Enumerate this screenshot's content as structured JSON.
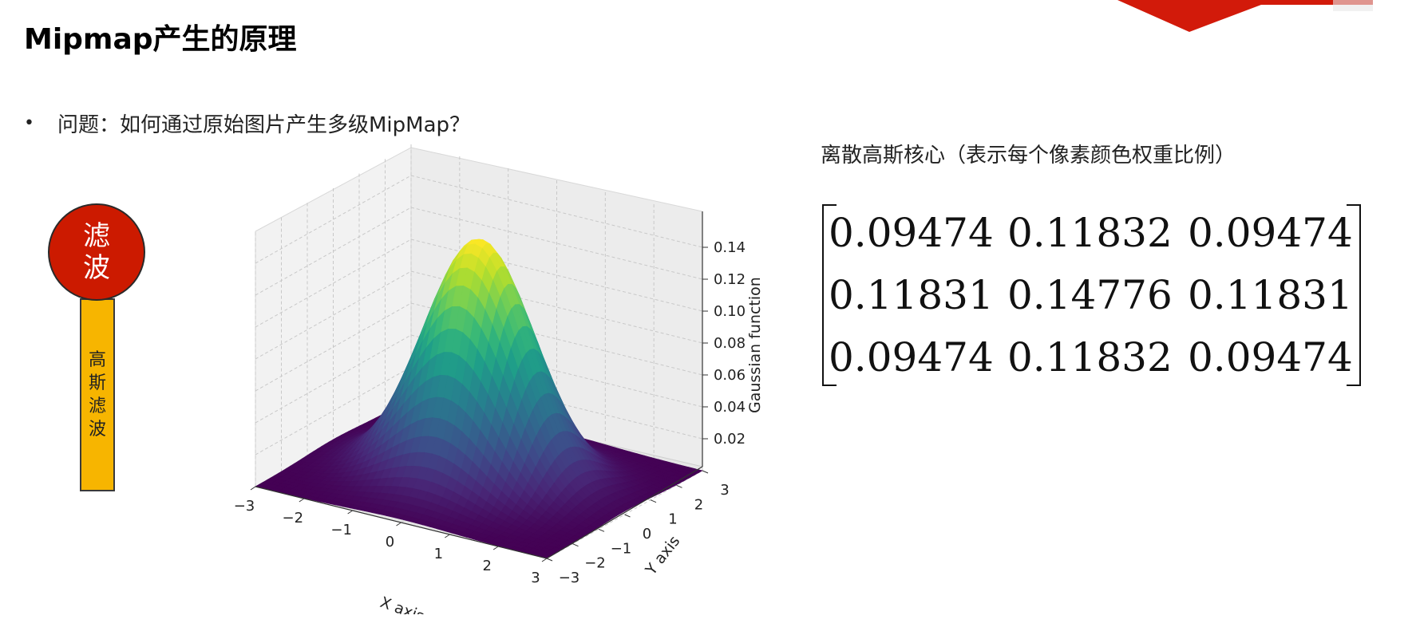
{
  "slide": {
    "title": "Mipmap产生的原理",
    "bullet_marker": "•",
    "bullet_text": "问题：如何通过原始图片产生多级MipMap？"
  },
  "ribbon": {
    "circle_line1": "滤",
    "circle_line2": "波",
    "bar_chars": [
      "高",
      "斯",
      "滤",
      "波"
    ],
    "circle_color": "#cc1a00",
    "bar_color": "#f7b500"
  },
  "chart_data": {
    "type": "surface3d",
    "function": "gaussian",
    "colormap": "viridis",
    "xlabel": "X axis",
    "ylabel": "Y axis",
    "zlabel": "Gaussian function",
    "x_ticks": [
      "−3",
      "−2",
      "−1",
      "0",
      "1",
      "2",
      "3"
    ],
    "y_ticks": [
      "−3",
      "−2",
      "−1",
      "0",
      "1",
      "2",
      "3"
    ],
    "z_ticks": [
      "0.02",
      "0.04",
      "0.06",
      "0.08",
      "0.10",
      "0.12",
      "0.14"
    ],
    "xlim": [
      -3,
      3
    ],
    "ylim": [
      -3,
      3
    ],
    "zlim": [
      0,
      0.16
    ],
    "peak": 0.15
  },
  "kernel": {
    "title": "离散高斯核心（表示每个像素颜色权重比例）",
    "rows": [
      [
        "0.09474",
        "0.11832",
        "0.09474"
      ],
      [
        "0.11831",
        "0.14776",
        "0.11831"
      ],
      [
        "0.09474",
        "0.11832",
        "0.09474"
      ]
    ]
  },
  "colors": {
    "banner_red": "#cc1a00"
  }
}
